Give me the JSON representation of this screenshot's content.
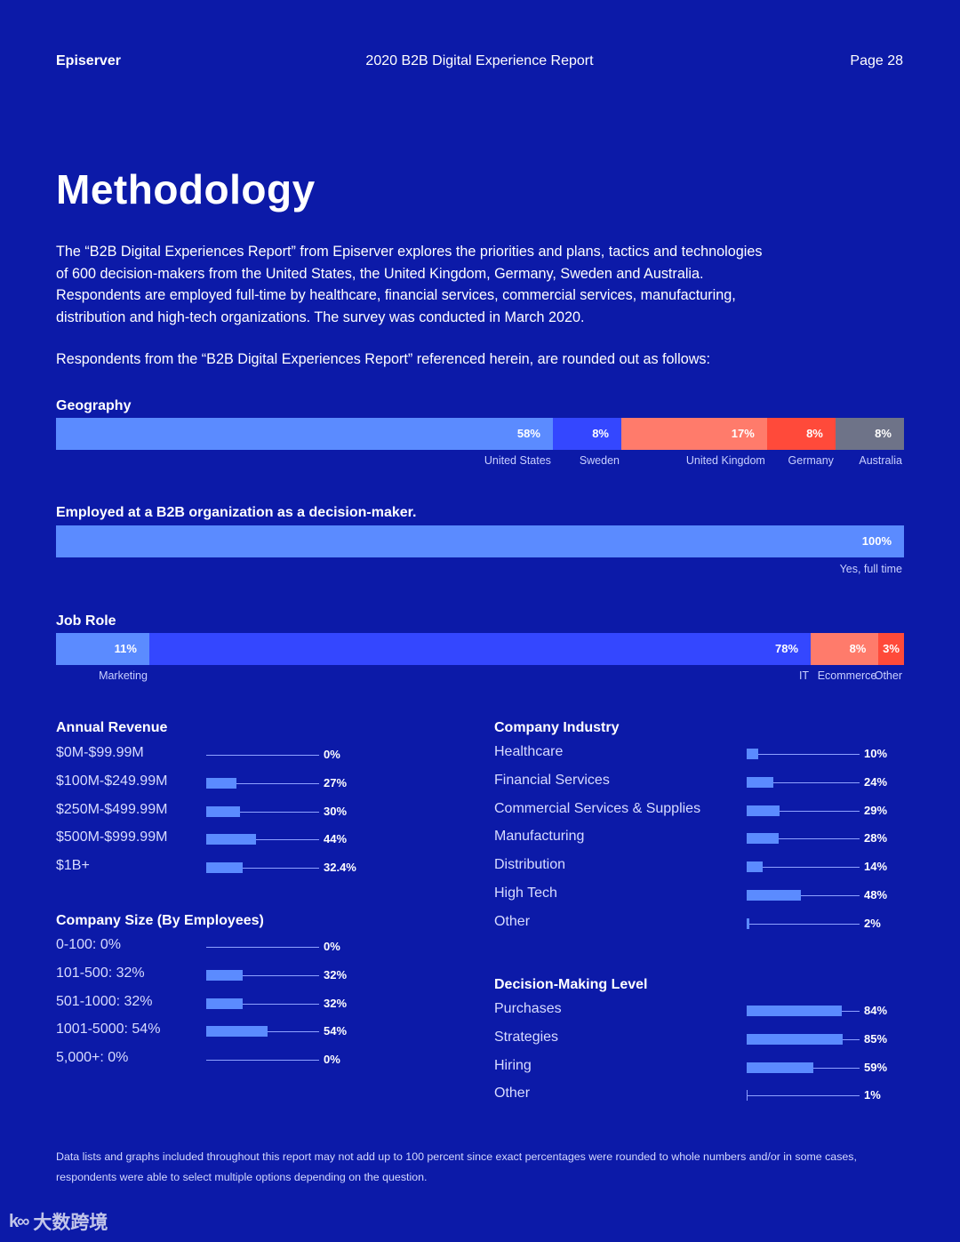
{
  "header": {
    "brand": "Episerver",
    "report_title": "2020 B2B Digital Experience Report",
    "page": "Page 28"
  },
  "title": "Methodology",
  "intro": "The “B2B Digital Experiences Report” from Episerver explores the priorities and plans, tactics and technologies of 600 decision-makers from the United States, the United Kingdom, Germany, Sweden and Australia. Respondents are employed full-time by healthcare, financial services, commercial services, manufacturing, distribution and high-tech organizations. The survey was conducted in March 2020.",
  "intro2": "Respondents from the “B2B Digital Experiences Report” referenced herein, are rounded out as follows:",
  "colors": {
    "background": "#0c1aa8",
    "light_blue": "#5b8bff",
    "blue": "#3447ff",
    "salmon": "#ff7b6b",
    "red": "#ff4a3a",
    "gray": "#6e7388"
  },
  "footnote": "Data lists and graphs included throughout this report may not add up to 100 percent since exact percentages were rounded to whole numbers and/or in some cases, respondents were able to select multiple options depending on the question.",
  "watermark": "大数跨境",
  "chart_data": [
    {
      "type": "bar",
      "title": "Geography",
      "stacked": true,
      "categories": [
        "United States",
        "Sweden",
        "United Kingdom",
        "Germany",
        "Australia"
      ],
      "values": [
        58,
        8,
        17,
        8,
        8
      ],
      "value_labels": [
        "58%",
        "8%",
        "17%",
        "8%",
        "8%"
      ],
      "colors": [
        "#5b8bff",
        "#3447ff",
        "#ff7b6b",
        "#ff4a3a",
        "#6e7388"
      ]
    },
    {
      "type": "bar",
      "title": "Employed at a B2B organization as a decision-maker.",
      "stacked": true,
      "categories": [
        "Yes, full time"
      ],
      "values": [
        100
      ],
      "value_labels": [
        "100%"
      ],
      "colors": [
        "#5b8bff"
      ]
    },
    {
      "type": "bar",
      "title": "Job Role",
      "stacked": true,
      "categories": [
        "Marketing",
        "IT",
        "Ecommerce",
        "Other"
      ],
      "values": [
        11,
        78,
        8,
        3
      ],
      "value_labels": [
        "11%",
        "78%",
        "8%",
        "3%"
      ],
      "colors": [
        "#5b8bff",
        "#3447ff",
        "#ff7b6b",
        "#ff4a3a"
      ]
    },
    {
      "type": "bar",
      "title": "Annual Revenue",
      "categories": [
        "$0M-$99.99M",
        "$100M-$249.99M",
        "$250M-$499.99M",
        "$500M-$999.99M",
        "$1B+"
      ],
      "values": [
        0,
        27,
        30,
        44,
        32.4
      ],
      "value_labels": [
        "0%",
        "27%",
        "30%",
        "44%",
        "32.4%"
      ]
    },
    {
      "type": "bar",
      "title": "Company Size (By Employees)",
      "categories": [
        "0-100: 0%",
        "101-500: 32%",
        "501-1000: 32%",
        "1001-5000: 54%",
        "5,000+: 0%"
      ],
      "values": [
        0,
        32,
        32,
        54,
        0
      ],
      "value_labels": [
        "0%",
        "32%",
        "32%",
        "54%",
        "0%"
      ]
    },
    {
      "type": "bar",
      "title": "Company Industry",
      "categories": [
        "Healthcare",
        "Financial Services",
        "Commercial Services & Supplies",
        "Manufacturing",
        "Distribution",
        "High Tech",
        "Other"
      ],
      "values": [
        10,
        24,
        29,
        28,
        14,
        48,
        2
      ],
      "value_labels": [
        "10%",
        "24%",
        "29%",
        "28%",
        "14%",
        "48%",
        "2%"
      ]
    },
    {
      "type": "bar",
      "title": "Decision-Making Level",
      "categories": [
        "Purchases",
        "Strategies",
        "Hiring",
        "Other"
      ],
      "values": [
        84,
        85,
        59,
        1
      ],
      "value_labels": [
        "84%",
        "85%",
        "59%",
        "1%"
      ]
    }
  ]
}
